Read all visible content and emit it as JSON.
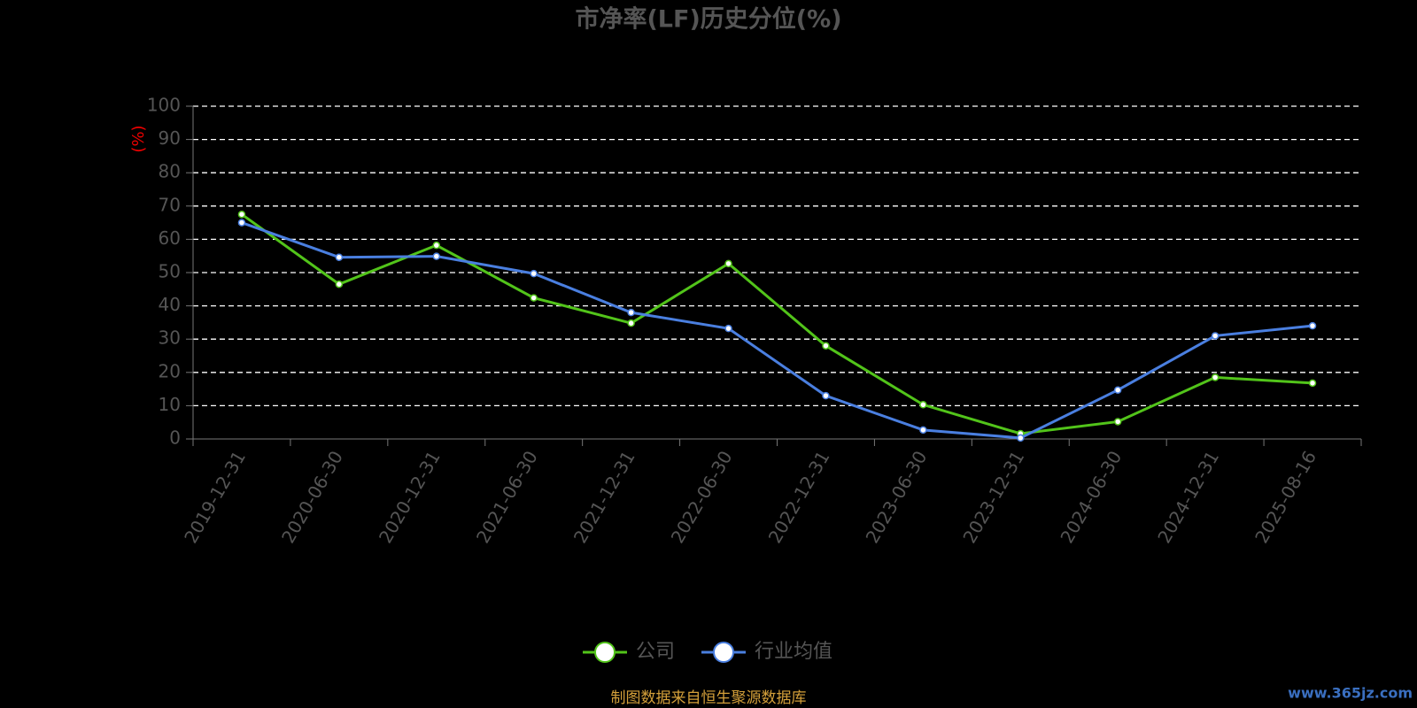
{
  "chart_data": {
    "type": "line",
    "title": "市净率(LF)历史分位(%)",
    "y_label": "(%)",
    "categories": [
      "2019-12-31",
      "2020-06-30",
      "2020-12-31",
      "2021-06-30",
      "2021-12-31",
      "2022-06-30",
      "2022-12-31",
      "2023-06-30",
      "2023-12-31",
      "2024-06-30",
      "2024-12-31",
      "2025-08-16"
    ],
    "series": [
      {
        "name": "公司",
        "color": "#52c41a",
        "values": [
          67.5,
          46.5,
          58.2,
          42.4,
          34.8,
          52.7,
          28,
          10.3,
          1.6,
          5.2,
          18.5,
          16.8
        ]
      },
      {
        "name": "行业均值",
        "color": "#4a7fe0",
        "values": [
          65,
          54.6,
          54.9,
          49.7,
          38,
          33.2,
          13,
          2.7,
          0.3,
          14.7,
          31,
          34
        ]
      }
    ],
    "ylim": [
      0,
      100
    ],
    "yticks": [
      0,
      10,
      20,
      30,
      40,
      50,
      60,
      70,
      80,
      90,
      100
    ],
    "grid": true,
    "footer": "制图数据来自恒生聚源数据库",
    "watermark": "www.365jz.com"
  }
}
